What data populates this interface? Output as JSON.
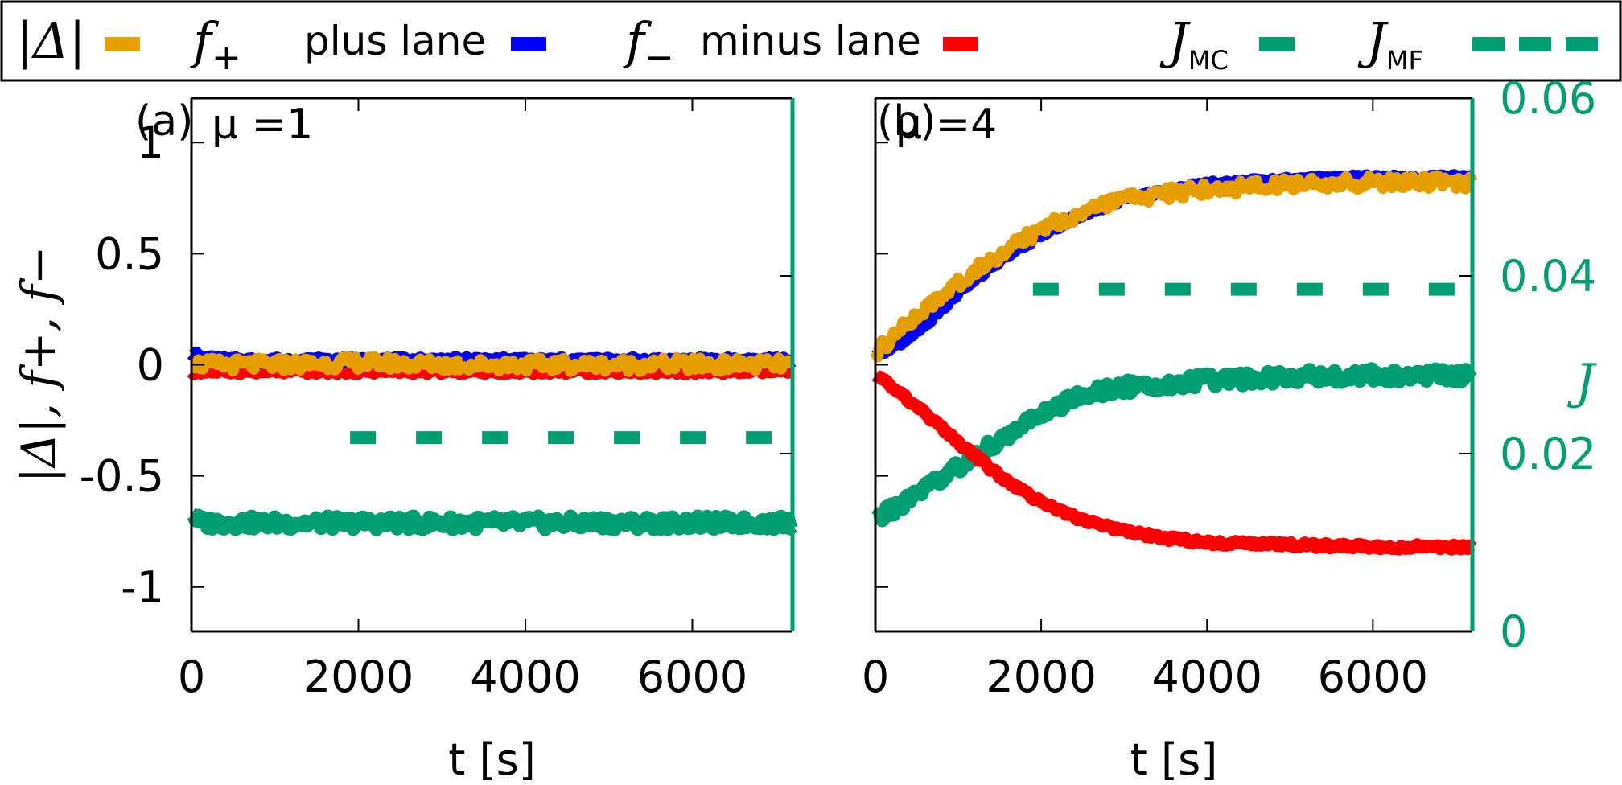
{
  "chart_data": {
    "type": "line",
    "colors": {
      "abs_delta": "#E69F00",
      "f_plus": "#0000FF",
      "f_minus": "#FF0000",
      "J_MC": "#009E73",
      "J_MF": "#009E73"
    },
    "legend": {
      "placement": "top",
      "entries": [
        {
          "key": "abs_delta",
          "math": "|Δ|",
          "text": ""
        },
        {
          "key": "f_plus",
          "math": "f",
          "sub": "+",
          "text": "plus lane"
        },
        {
          "key": "f_minus",
          "math": "f",
          "sub": "−",
          "text": "minus lane"
        },
        {
          "key": "J_MC",
          "math": "J",
          "sub": "MC",
          "text": ""
        },
        {
          "key": "J_MF",
          "math": "J",
          "sub": "MF",
          "text": ""
        }
      ]
    },
    "left_axis_label": "|Δ|, f+, f−",
    "right_axis_label": "J",
    "xlabel": "t [s]",
    "xlim": [
      0,
      7200
    ],
    "ylim_left": [
      -1.2,
      1.2
    ],
    "ylim_right": [
      0,
      0.06
    ],
    "x_ticks": [
      0,
      2000,
      4000,
      6000
    ],
    "y_ticks_left": [
      "1",
      "0.5",
      "0",
      "-0.5",
      "-1"
    ],
    "y_ticks_left_values": [
      1,
      0.5,
      0,
      -0.5,
      -1
    ],
    "y_ticks_right": [
      "0.06",
      "0.04",
      "0.02",
      "0"
    ],
    "y_ticks_right_values": [
      0.06,
      0.04,
      0.02,
      0
    ],
    "panels": [
      {
        "label": "(a)",
        "param": "μ =1",
        "series": [
          {
            "key": "f_plus",
            "x": [
              0,
              100,
              500,
              1000,
              2000,
              3000,
              4000,
              5000,
              6000,
              7200
            ],
            "y": [
              0.06,
              0.03,
              0.02,
              0.02,
              0.02,
              0.02,
              0.02,
              0.02,
              0.02,
              0.02
            ]
          },
          {
            "key": "f_minus",
            "x": [
              0,
              100,
              500,
              1000,
              2000,
              3000,
              4000,
              5000,
              6000,
              7200
            ],
            "y": [
              -0.04,
              -0.03,
              -0.03,
              -0.03,
              -0.03,
              -0.03,
              -0.03,
              -0.03,
              -0.03,
              -0.03
            ]
          },
          {
            "key": "abs_delta",
            "x": [
              0,
              100,
              500,
              1000,
              2000,
              3000,
              4000,
              5000,
              6000,
              7200
            ],
            "y": [
              0.02,
              0.0,
              0.0,
              0.0,
              0.01,
              0.0,
              0.0,
              0.0,
              0.0,
              0.0
            ]
          },
          {
            "key": "J_MC",
            "x": [
              0,
              100,
              500,
              1000,
              2000,
              3000,
              4000,
              5000,
              6000,
              7200
            ],
            "y": [
              0.0135,
              0.0122,
              0.0122,
              0.0122,
              0.0122,
              0.0122,
              0.0122,
              0.0122,
              0.0122,
              0.0122
            ],
            "axis": "right"
          },
          {
            "key": "J_MF",
            "x": [
              1900,
              7100
            ],
            "y": [
              0.0218,
              0.0218
            ],
            "axis": "right"
          }
        ]
      },
      {
        "label": "(b)",
        "param": "μ =4",
        "series": [
          {
            "key": "f_plus",
            "x": [
              0,
              500,
              1000,
              1500,
              2000,
              2500,
              3000,
              3500,
              4000,
              5000,
              6000,
              7200
            ],
            "y": [
              0.03,
              0.15,
              0.33,
              0.47,
              0.59,
              0.68,
              0.75,
              0.78,
              0.81,
              0.83,
              0.84,
              0.84
            ]
          },
          {
            "key": "f_minus",
            "x": [
              0,
              500,
              1000,
              1500,
              2000,
              2500,
              3000,
              3500,
              4000,
              5000,
              6000,
              7200
            ],
            "y": [
              -0.04,
              -0.19,
              -0.35,
              -0.5,
              -0.62,
              -0.7,
              -0.75,
              -0.78,
              -0.8,
              -0.81,
              -0.82,
              -0.82
            ]
          },
          {
            "key": "abs_delta",
            "x": [
              0,
              500,
              1000,
              1500,
              2000,
              2500,
              3000,
              3500,
              4000,
              5000,
              6000,
              7200
            ],
            "y": [
              0.05,
              0.22,
              0.37,
              0.5,
              0.61,
              0.69,
              0.74,
              0.77,
              0.79,
              0.81,
              0.82,
              0.82
            ]
          },
          {
            "key": "J_MC",
            "x": [
              0,
              500,
              1000,
              1500,
              2000,
              2500,
              3000,
              3500,
              4000,
              5000,
              6000,
              7200
            ],
            "y": [
              0.0125,
              0.0155,
              0.0185,
              0.0215,
              0.0245,
              0.0265,
              0.0275,
              0.0278,
              0.0282,
              0.0287,
              0.0288,
              0.0288
            ],
            "axis": "right"
          },
          {
            "key": "J_MF",
            "x": [
              1900,
              7200
            ],
            "y": [
              0.0385,
              0.0385
            ],
            "axis": "right"
          }
        ]
      }
    ]
  }
}
